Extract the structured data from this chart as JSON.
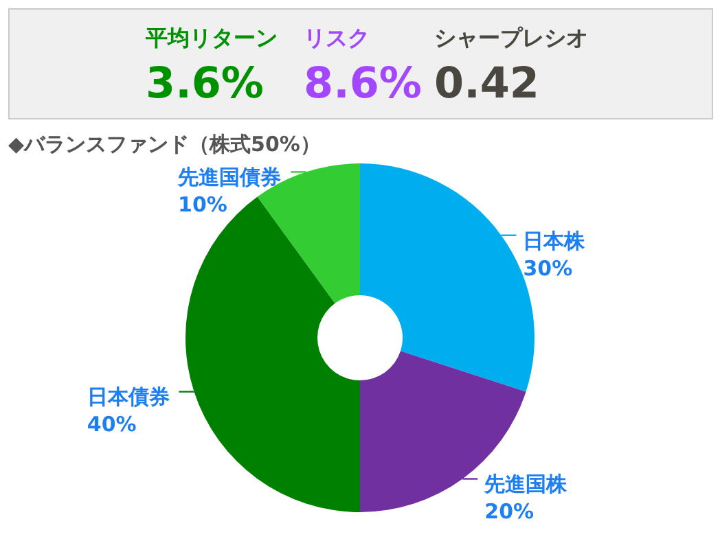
{
  "chart_data": [
    {
      "type": "other",
      "categories": [
        "平均リターン",
        "リスク",
        "シャープレシオ"
      ],
      "value_labels": [
        "3.6%",
        "8.6%",
        "0.42"
      ]
    },
    {
      "type": "donut",
      "title": "◆バランスファンド（株式50%）",
      "categories": [
        "日本株",
        "先進国株",
        "日本債券",
        "先進国債券"
      ],
      "values": [
        30,
        20,
        40,
        10
      ],
      "value_labels": [
        "30%",
        "20%",
        "40%",
        "10%"
      ],
      "colors": [
        "#00adef",
        "#7030a0",
        "#008000",
        "#33cc33"
      ]
    }
  ]
}
